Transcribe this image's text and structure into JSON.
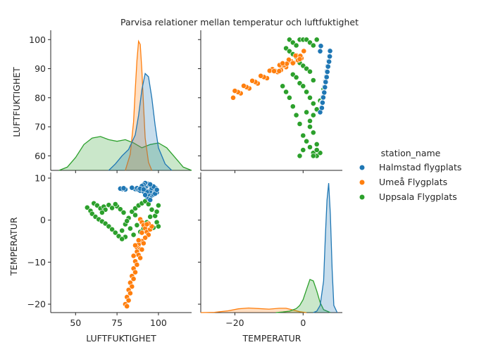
{
  "chart_data": {
    "type": "scatter",
    "title": "Parvisa relationer mellan temperatur och luftfuktighet",
    "variables": [
      "LUFTFUKTIGHET",
      "TEMPERATUR"
    ],
    "legend": {
      "title": "station_name",
      "placement": "right",
      "entries": [
        {
          "name": "Halmstad flygplats",
          "color": "#1f77b4"
        },
        {
          "name": "Umeå Flygplats",
          "color": "#ff7f0e"
        },
        {
          "name": "Uppsala Flygplats",
          "color": "#2ca02c"
        }
      ]
    },
    "axes": {
      "LUFTFUKTIGHET": {
        "range": [
          35,
          120
        ],
        "ticks": [
          50,
          75,
          100
        ],
        "tick_labels": [
          "50",
          "75",
          "100"
        ]
      },
      "LUFTFUKTIGHET_y": {
        "range": [
          55,
          102
        ],
        "ticks": [
          60,
          70,
          80,
          90,
          100
        ],
        "tick_labels": [
          "60",
          "70",
          "80",
          "90",
          "100"
        ]
      },
      "TEMPERATUR_x": {
        "range": [
          -30,
          11.5
        ],
        "ticks": [
          -20,
          0
        ],
        "tick_labels": [
          "−20",
          "0"
        ]
      },
      "TEMPERATUR_y": {
        "range": [
          -22,
          10.5
        ],
        "ticks": [
          -20,
          -10,
          0,
          10
        ],
        "tick_labels": [
          "−20",
          "−10",
          "0",
          "10"
        ]
      }
    },
    "grid": false,
    "series": [
      {
        "name": "Halmstad flygplats",
        "color": "#1f77b4",
        "points": [
          [
            86,
            7.4
          ],
          [
            87,
            7.6
          ],
          [
            88,
            7.2
          ],
          [
            89,
            7.0
          ],
          [
            90,
            7.8
          ],
          [
            91,
            6.8
          ],
          [
            92,
            7.5
          ],
          [
            93,
            8.2
          ],
          [
            94,
            8.6
          ],
          [
            95,
            7.1
          ],
          [
            96,
            6.5
          ],
          [
            97,
            7.9
          ],
          [
            98,
            7.3
          ],
          [
            93,
            5.6
          ],
          [
            94,
            5.2
          ],
          [
            95,
            4.8
          ],
          [
            96,
            5.9
          ],
          [
            97,
            6.1
          ],
          [
            98,
            7.7
          ],
          [
            99,
            6.6
          ],
          [
            92,
            8.8
          ],
          [
            91,
            8.4
          ],
          [
            90,
            8.1
          ],
          [
            89,
            7.5
          ],
          [
            94,
            6.2
          ],
          [
            95,
            6.9
          ],
          [
            96,
            7.6
          ],
          [
            97,
            8.0
          ],
          [
            98,
            6.3
          ],
          [
            99,
            7.2
          ],
          [
            95,
            8.5
          ],
          [
            93,
            6.7
          ],
          [
            92,
            6.0
          ],
          [
            91,
            7.3
          ],
          [
            84,
            7.7
          ],
          [
            80,
            7.3
          ],
          [
            78,
            7.4
          ],
          [
            77,
            7.5
          ],
          [
            79,
            7.6
          ]
        ],
        "kde_humidity": {
          "x": [
            70,
            74,
            78,
            82,
            86,
            88,
            90,
            92,
            94,
            96,
            98,
            100,
            104,
            108
          ],
          "y": [
            0.0,
            0.004,
            0.009,
            0.013,
            0.022,
            0.034,
            0.05,
            0.06,
            0.058,
            0.045,
            0.028,
            0.014,
            0.004,
            0.0
          ]
        },
        "kde_temp": {
          "x": [
            3,
            4,
            5,
            6,
            6.5,
            7,
            7.5,
            8,
            8.5,
            9,
            10
          ],
          "y": [
            0.0,
            0.01,
            0.05,
            0.22,
            0.52,
            0.78,
            0.9,
            0.68,
            0.3,
            0.05,
            0.0
          ]
        }
      },
      {
        "name": "Umeå Flygplats",
        "color": "#ff7f0e",
        "points": [
          [
            89,
            0.2
          ],
          [
            90,
            -0.5
          ],
          [
            91,
            -1.2
          ],
          [
            92,
            -2.0
          ],
          [
            93,
            -2.8
          ],
          [
            94,
            -3.5
          ],
          [
            95,
            -2.2
          ],
          [
            96,
            -1.5
          ],
          [
            94,
            -0.8
          ],
          [
            92,
            -4.2
          ],
          [
            90,
            -5.0
          ],
          [
            88,
            -5.8
          ],
          [
            87,
            -6.5
          ],
          [
            89,
            -6.9
          ],
          [
            91,
            -5.5
          ],
          [
            88,
            -4.8
          ],
          [
            87,
            -7.5
          ],
          [
            88,
            -8.3
          ],
          [
            89,
            -9.0
          ],
          [
            86,
            -9.8
          ],
          [
            87,
            -10.6
          ],
          [
            85,
            -11.5
          ],
          [
            86,
            -12.4
          ],
          [
            84,
            -13.3
          ],
          [
            85,
            -14.0
          ],
          [
            83,
            -14.9
          ],
          [
            84,
            -15.8
          ],
          [
            82,
            -16.6
          ],
          [
            83,
            -17.4
          ],
          [
            81,
            -18.3
          ],
          [
            82,
            -19.1
          ],
          [
            80,
            -20.0
          ],
          [
            81,
            -20.5
          ],
          [
            90,
            -3.0
          ],
          [
            93,
            -1.0
          ],
          [
            86,
            -6.0
          ],
          [
            90,
            -7.0
          ],
          [
            85,
            -8.5
          ]
        ],
        "kde_humidity": {
          "x": [
            80,
            83,
            85,
            86,
            87,
            88,
            89,
            90,
            91,
            92,
            94,
            96
          ],
          "y": [
            0.0,
            0.01,
            0.03,
            0.05,
            0.068,
            0.08,
            0.078,
            0.062,
            0.04,
            0.02,
            0.005,
            0.0
          ]
        },
        "kde_temp": {
          "x": [
            -30,
            -26,
            -22,
            -19,
            -16,
            -13,
            -10,
            -7,
            -5,
            -3,
            -1,
            1
          ],
          "y": [
            0.0,
            0.002,
            0.012,
            0.026,
            0.032,
            0.028,
            0.024,
            0.03,
            0.03,
            0.018,
            0.006,
            0.0
          ]
        }
      },
      {
        "name": "Uppsala Flygplats",
        "color": "#2ca02c",
        "points": [
          [
            57,
            3.0
          ],
          [
            59,
            2.2
          ],
          [
            60,
            1.5
          ],
          [
            62,
            0.8
          ],
          [
            64,
            0.2
          ],
          [
            66,
            -0.3
          ],
          [
            68,
            -0.8
          ],
          [
            70,
            -1.5
          ],
          [
            72,
            -2.2
          ],
          [
            74,
            -3.0
          ],
          [
            76,
            -3.8
          ],
          [
            78,
            -2.5
          ],
          [
            80,
            -1.0
          ],
          [
            82,
            0.5
          ],
          [
            84,
            2.0
          ],
          [
            86,
            2.8
          ],
          [
            88,
            3.5
          ],
          [
            90,
            4.0
          ],
          [
            92,
            4.5
          ],
          [
            94,
            3.8
          ],
          [
            96,
            2.5
          ],
          [
            98,
            1.0
          ],
          [
            99,
            -0.5
          ],
          [
            100,
            -1.5
          ],
          [
            99,
            2.0
          ],
          [
            100,
            3.5
          ],
          [
            61,
            4.0
          ],
          [
            63,
            3.5
          ],
          [
            65,
            2.8
          ],
          [
            67,
            3.2
          ],
          [
            70,
            3.6
          ],
          [
            72,
            2.9
          ],
          [
            75,
            3.3
          ],
          [
            77,
            2.6
          ],
          [
            79,
            1.8
          ],
          [
            81,
            -0.2
          ],
          [
            83,
            -2.0
          ],
          [
            85,
            -3.5
          ],
          [
            87,
            -1.2
          ],
          [
            89,
            -2.8
          ],
          [
            91,
            -2.0
          ],
          [
            93,
            -0.5
          ],
          [
            95,
            0.8
          ],
          [
            97,
            -1.8
          ],
          [
            86,
            1.2
          ],
          [
            80,
            -4.0
          ],
          [
            78,
            -4.5
          ],
          [
            74,
            3.8
          ],
          [
            68,
            2.5
          ],
          [
            66,
            1.8
          ]
        ],
        "kde_humidity": {
          "x": [
            40,
            45,
            50,
            55,
            60,
            65,
            70,
            75,
            80,
            85,
            90,
            95,
            100,
            105,
            110,
            115,
            120
          ],
          "y": [
            0.0,
            0.002,
            0.008,
            0.016,
            0.02,
            0.021,
            0.019,
            0.018,
            0.019,
            0.017,
            0.014,
            0.016,
            0.017,
            0.014,
            0.008,
            0.002,
            0.0
          ]
        },
        "kde_temp": {
          "x": [
            -8,
            -6,
            -4,
            -2,
            -1,
            0,
            1,
            2,
            3,
            4,
            5,
            6,
            8
          ],
          "y": [
            0.0,
            0.004,
            0.01,
            0.028,
            0.05,
            0.09,
            0.16,
            0.23,
            0.22,
            0.15,
            0.07,
            0.02,
            0.0
          ]
        }
      },
      {
        "name": "Uppsala Flygplats",
        "color": "#2ca02c",
        "points_tt": [
          [
            -4,
            100
          ],
          [
            -3,
            99
          ],
          [
            -2,
            98
          ],
          [
            -1,
            100
          ],
          [
            0,
            100
          ],
          [
            1,
            100
          ],
          [
            2,
            99
          ],
          [
            3,
            98
          ],
          [
            4,
            100
          ],
          [
            -5,
            97
          ],
          [
            -4,
            96
          ],
          [
            -3,
            95
          ],
          [
            -2,
            94
          ],
          [
            -1,
            92
          ],
          [
            0,
            91
          ],
          [
            1,
            90
          ],
          [
            2,
            89
          ],
          [
            3,
            86
          ],
          [
            -3,
            88
          ],
          [
            -2,
            87
          ],
          [
            -1,
            85
          ],
          [
            0,
            84
          ],
          [
            1,
            82
          ],
          [
            2,
            80
          ],
          [
            3,
            78
          ],
          [
            -4,
            80
          ],
          [
            -3,
            77
          ],
          [
            -2,
            74
          ],
          [
            -1,
            71
          ],
          [
            0,
            67
          ],
          [
            1,
            65
          ],
          [
            2,
            63
          ],
          [
            3,
            61
          ],
          [
            4,
            60
          ],
          [
            5,
            61
          ],
          [
            2,
            72
          ],
          [
            3,
            74
          ],
          [
            4,
            76
          ],
          [
            5,
            79
          ],
          [
            6,
            83
          ],
          [
            -6,
            84
          ],
          [
            -5,
            82
          ],
          [
            1,
            75
          ],
          [
            2,
            70
          ],
          [
            3,
            68
          ],
          [
            4,
            64
          ],
          [
            0,
            62
          ],
          [
            -1,
            60
          ],
          [
            3,
            60
          ],
          [
            4,
            62
          ]
        ]
      }
    ]
  }
}
